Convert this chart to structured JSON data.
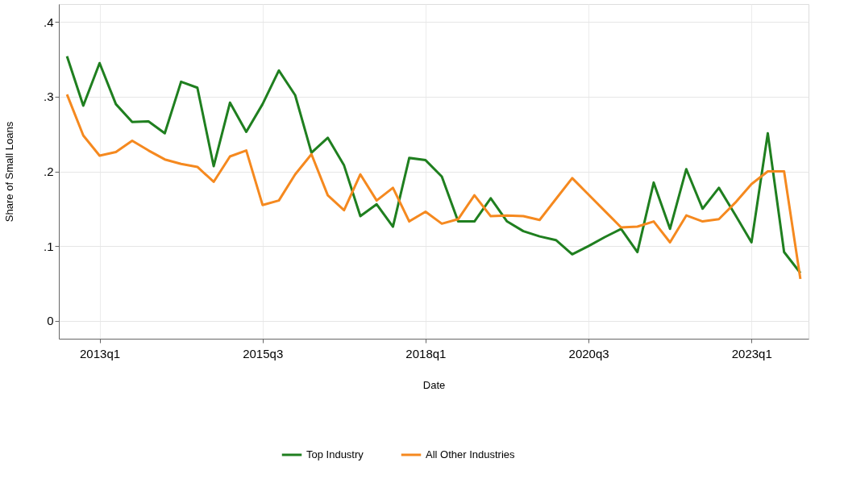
{
  "chart_data": {
    "type": "line",
    "xlabel": "Date",
    "ylabel": "Share of Small Loans",
    "categories": [
      null,
      null,
      "2013q1",
      null,
      null,
      null,
      null,
      null,
      null,
      null,
      null,
      null,
      "2015q3",
      null,
      null,
      null,
      null,
      null,
      null,
      null,
      null,
      null,
      "2018q1",
      null,
      null,
      null,
      null,
      null,
      null,
      null,
      null,
      null,
      "2020q3",
      null,
      null,
      null,
      null,
      null,
      null,
      null,
      null,
      null,
      "2023q1",
      null,
      null,
      null
    ],
    "ylim": [
      -0.024,
      0.424
    ],
    "yticks": [
      {
        "value": 0,
        "label": "0"
      },
      {
        "value": 0.1,
        "label": ".1"
      },
      {
        "value": 0.2,
        "label": ".2"
      },
      {
        "value": 0.3,
        "label": ".3"
      },
      {
        "value": 0.4,
        "label": ".4"
      }
    ],
    "grid": true,
    "legend": "bottom",
    "series": [
      {
        "name": "Top Industry",
        "color": "#1f7f1f",
        "values": [
          0.354,
          0.288,
          0.345,
          0.29,
          0.266,
          0.267,
          0.251,
          0.32,
          0.312,
          0.207,
          0.292,
          0.253,
          0.29,
          0.335,
          0.302,
          0.225,
          0.245,
          0.208,
          0.14,
          0.156,
          0.126,
          0.218,
          0.215,
          0.193,
          0.133,
          0.133,
          0.164,
          0.133,
          0.12,
          0.113,
          0.108,
          0.089,
          0.1,
          0.112,
          0.123,
          0.092,
          0.185,
          0.123,
          0.203,
          0.15,
          0.178,
          0.142,
          0.105,
          0.251,
          0.092,
          0.064
        ]
      },
      {
        "name": "All Other Industries",
        "color": "#f5891f",
        "values": [
          0.303,
          0.248,
          0.221,
          0.226,
          0.241,
          0.228,
          0.216,
          0.21,
          0.206,
          0.186,
          0.22,
          0.228,
          0.155,
          0.161,
          0.196,
          0.223,
          0.168,
          0.148,
          0.196,
          0.161,
          0.178,
          0.133,
          0.146,
          0.13,
          0.136,
          0.168,
          0.14,
          0.141,
          0.14,
          0.135,
          0.163,
          0.191,
          0.169,
          0.147,
          0.125,
          0.126,
          0.133,
          0.105,
          0.141,
          0.133,
          0.136,
          0.158,
          0.183,
          0.2,
          0.2,
          0.056
        ]
      }
    ]
  }
}
